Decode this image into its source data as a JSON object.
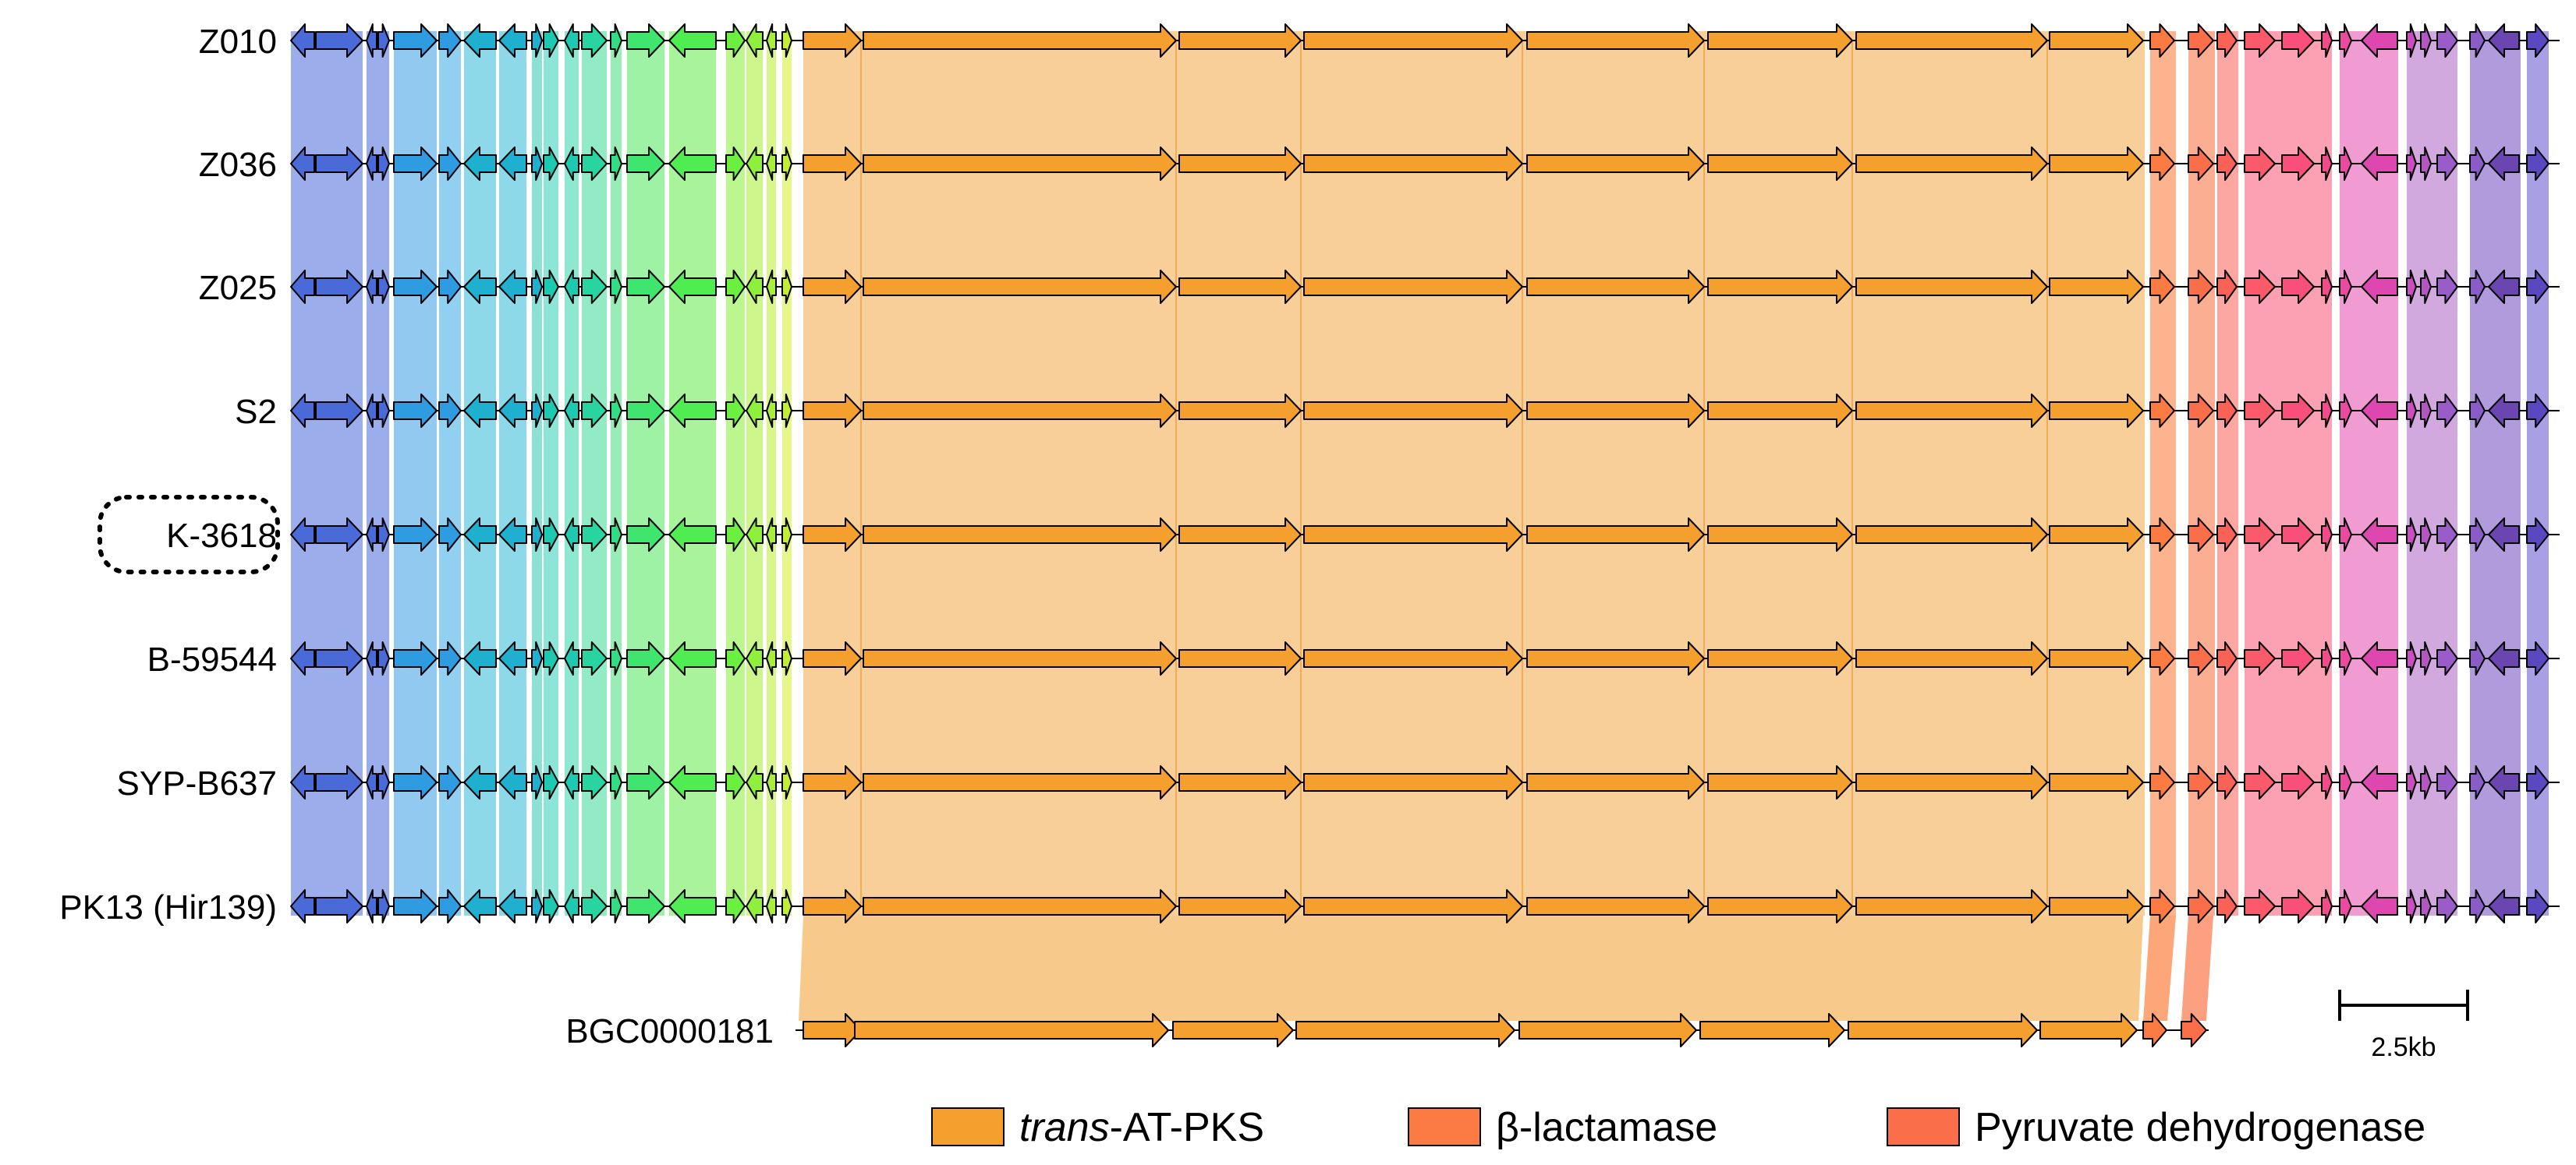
{
  "clusters": [
    "Z010",
    "Z036",
    "Z025",
    "S2",
    "K-3618",
    "B-59544",
    "SYP-B637",
    "PK13 (Hir139)"
  ],
  "highlighted_cluster": "K-3618",
  "reference_cluster": "BGC0000181",
  "scale_bar": {
    "label": "2.5kb",
    "length_kb": 2.5
  },
  "legend": [
    {
      "italic": "trans",
      "text": "-AT-PKS",
      "color": "#f59f2f"
    },
    {
      "text": "β-lactamase",
      "color": "#fb7b42"
    },
    {
      "text": "Pyruvate dehydrogenase",
      "color": "#fb6e4a"
    }
  ],
  "colors": {
    "pks": "#f59f2f",
    "pks_band": "#f7c786",
    "beta_lactamase": "#fb7b42",
    "dehydrogenase": "#fb6e4a"
  }
}
